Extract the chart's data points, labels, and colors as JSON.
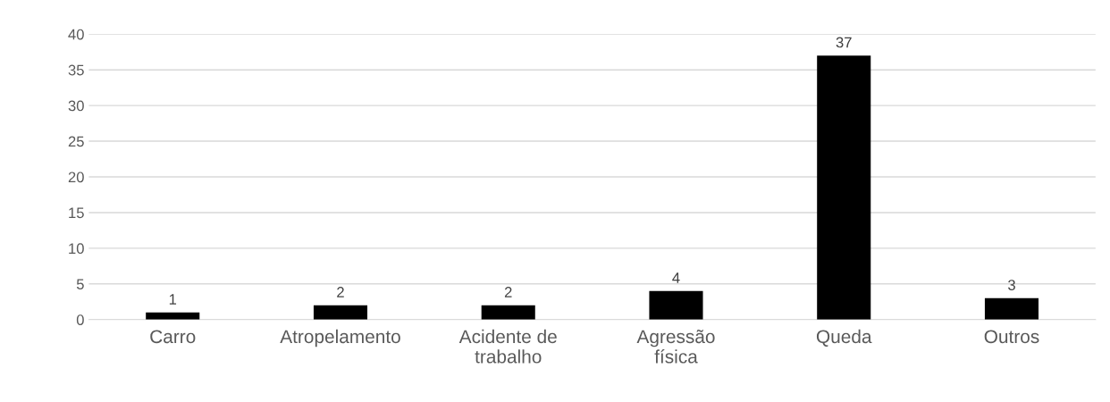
{
  "chart_data": {
    "type": "bar",
    "categories": [
      "Carro",
      "Atropelamento",
      "Acidente de\ntrabalho",
      "Agressão\nfísica",
      "Queda",
      "Outros"
    ],
    "values": [
      1,
      2,
      2,
      4,
      37,
      3
    ],
    "color": "#000000",
    "ylim": [
      0,
      40
    ],
    "yticks": [
      0,
      5,
      10,
      15,
      20,
      25,
      30,
      35,
      40
    ],
    "grid": "y",
    "data_labels": true,
    "legend": false
  }
}
